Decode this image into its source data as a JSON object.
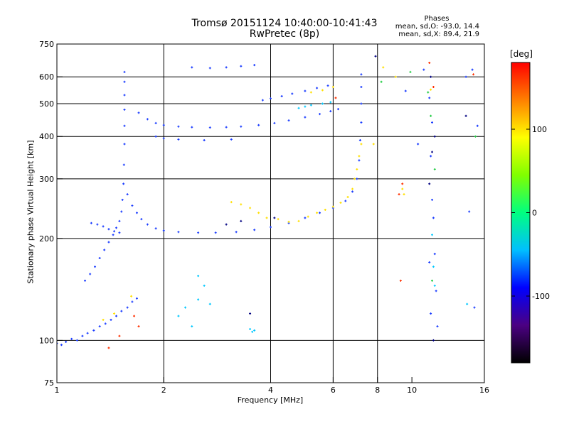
{
  "chart_data": {
    "type": "scatter",
    "title": "Tromsø 20151124 10:40:00-10:41:43",
    "subtitle": "RwPretec (8p)",
    "xlabel": "Frequency [MHz]",
    "ylabel": "Stationary phase Virtual Height [km]",
    "x_scale": "log",
    "y_scale": "log",
    "xlim": [
      1,
      16
    ],
    "ylim": [
      75,
      750
    ],
    "x_ticks": [
      1,
      2,
      4,
      6,
      8,
      10,
      16
    ],
    "x_grid": [
      2,
      4,
      6,
      8
    ],
    "y_ticks": [
      75,
      100,
      200,
      300,
      400,
      500,
      600,
      750
    ],
    "y_grid": [
      100,
      200,
      300,
      400,
      500,
      600
    ],
    "phase_stats": {
      "title": "Phases",
      "line1": "mean, sd,O: -93.0, 14.4",
      "line2": "mean, sd,X: 89.4, 21.9"
    },
    "colorbar": {
      "label": "[deg]",
      "range": [
        -180,
        180
      ],
      "ticks": [
        {
          "value": 100,
          "label": "100"
        },
        {
          "value": 0,
          "label": "0"
        },
        {
          "value": -100,
          "label": "-100"
        }
      ],
      "stops": [
        "#000000",
        "#4b0082",
        "#0000ff",
        "#00bfff",
        "#00ff80",
        "#80ff00",
        "#ffff00",
        "#ff8000",
        "#ff0000"
      ]
    },
    "series": [
      {
        "color": "#1a3cff",
        "points": [
          [
            1.0,
            98
          ],
          [
            1.03,
            97
          ],
          [
            1.06,
            99
          ],
          [
            1.1,
            101
          ],
          [
            1.14,
            100
          ],
          [
            1.18,
            103
          ],
          [
            1.22,
            105
          ],
          [
            1.27,
            107
          ],
          [
            1.32,
            110
          ],
          [
            1.37,
            112
          ],
          [
            1.42,
            115
          ],
          [
            1.47,
            118
          ],
          [
            1.52,
            122
          ],
          [
            1.58,
            125
          ],
          [
            1.63,
            130
          ],
          [
            1.68,
            133
          ],
          [
            1.2,
            150
          ],
          [
            1.24,
            157
          ],
          [
            1.28,
            165
          ],
          [
            1.32,
            175
          ],
          [
            1.36,
            185
          ],
          [
            1.4,
            195
          ],
          [
            1.44,
            205
          ],
          [
            1.47,
            215
          ],
          [
            1.5,
            225
          ],
          [
            1.52,
            240
          ],
          [
            1.53,
            260
          ],
          [
            1.54,
            290
          ],
          [
            1.545,
            330
          ],
          [
            1.55,
            380
          ],
          [
            1.55,
            430
          ],
          [
            1.55,
            480
          ],
          [
            1.55,
            530
          ],
          [
            1.55,
            580
          ],
          [
            1.55,
            620
          ],
          [
            1.58,
            270
          ],
          [
            1.63,
            250
          ],
          [
            1.68,
            238
          ],
          [
            1.73,
            228
          ],
          [
            1.8,
            220
          ],
          [
            1.9,
            214
          ],
          [
            2.0,
            211
          ],
          [
            2.2,
            209
          ],
          [
            2.5,
            208
          ],
          [
            2.8,
            208
          ],
          [
            3.2,
            209
          ],
          [
            3.6,
            212
          ],
          [
            4.0,
            216
          ],
          [
            4.5,
            222
          ],
          [
            5.0,
            230
          ],
          [
            5.5,
            238
          ],
          [
            6.0,
            246
          ],
          [
            6.5,
            258
          ],
          [
            6.8,
            275
          ],
          [
            7.0,
            300
          ],
          [
            7.1,
            340
          ],
          [
            7.15,
            390
          ],
          [
            7.2,
            440
          ],
          [
            7.2,
            500
          ],
          [
            7.2,
            560
          ],
          [
            7.2,
            610
          ],
          [
            1.25,
            222
          ],
          [
            1.3,
            220
          ],
          [
            1.35,
            217
          ],
          [
            1.4,
            213
          ],
          [
            1.45,
            210
          ],
          [
            1.5,
            208
          ],
          [
            1.7,
            470
          ],
          [
            1.8,
            450
          ],
          [
            1.9,
            438
          ],
          [
            2.0,
            432
          ],
          [
            2.2,
            428
          ],
          [
            2.4,
            426
          ],
          [
            2.7,
            425
          ],
          [
            3.0,
            426
          ],
          [
            3.3,
            428
          ],
          [
            3.7,
            432
          ],
          [
            4.1,
            438
          ],
          [
            4.5,
            446
          ],
          [
            5.0,
            456
          ],
          [
            5.5,
            466
          ],
          [
            5.9,
            475
          ],
          [
            6.2,
            482
          ],
          [
            3.8,
            512
          ],
          [
            4.0,
            518
          ],
          [
            4.3,
            526
          ],
          [
            4.6,
            535
          ],
          [
            5.0,
            545
          ],
          [
            5.4,
            556
          ],
          [
            5.8,
            565
          ],
          [
            2.4,
            640
          ],
          [
            2.7,
            637
          ],
          [
            3.0,
            640
          ],
          [
            3.3,
            645
          ],
          [
            3.6,
            650
          ],
          [
            1.9,
            400
          ],
          [
            2.0,
            395
          ],
          [
            2.2,
            392
          ],
          [
            2.6,
            390
          ],
          [
            3.1,
            392
          ],
          [
            9.6,
            545
          ],
          [
            10.4,
            380
          ],
          [
            10.8,
            630
          ],
          [
            11.2,
            520
          ],
          [
            11.3,
            350
          ],
          [
            11.4,
            260
          ],
          [
            11.5,
            230
          ],
          [
            11.6,
            180
          ],
          [
            11.7,
            140
          ],
          [
            11.8,
            110
          ],
          [
            11.2,
            170
          ],
          [
            11.3,
            120
          ],
          [
            11.4,
            440
          ],
          [
            14.5,
            240
          ],
          [
            14.8,
            630
          ],
          [
            15.0,
            125
          ],
          [
            14.2,
            600
          ],
          [
            15.3,
            430
          ]
        ]
      },
      {
        "color": "#ffe000",
        "points": [
          [
            3.1,
            256
          ],
          [
            3.3,
            252
          ],
          [
            3.5,
            246
          ],
          [
            3.7,
            238
          ],
          [
            3.9,
            230
          ],
          [
            4.2,
            228
          ],
          [
            4.5,
            224
          ],
          [
            4.8,
            225
          ],
          [
            5.1,
            232
          ],
          [
            5.4,
            238
          ],
          [
            5.7,
            243
          ],
          [
            6.0,
            248
          ],
          [
            6.3,
            255
          ],
          [
            6.6,
            265
          ],
          [
            6.8,
            280
          ],
          [
            6.9,
            300
          ],
          [
            7.0,
            320
          ],
          [
            7.1,
            350
          ],
          [
            7.2,
            380
          ],
          [
            6.0,
            560
          ],
          [
            5.6,
            548
          ],
          [
            5.2,
            540
          ],
          [
            1.45,
            120
          ],
          [
            1.35,
            115
          ],
          [
            1.62,
            135
          ],
          [
            7.8,
            380
          ],
          [
            8.3,
            640
          ],
          [
            9.0,
            600
          ],
          [
            11.3,
            550
          ],
          [
            9.5,
            270
          ],
          [
            9.4,
            280
          ]
        ]
      },
      {
        "color": "#00c8ff",
        "points": [
          [
            2.2,
            118
          ],
          [
            2.3,
            125
          ],
          [
            2.5,
            132
          ],
          [
            2.7,
            128
          ],
          [
            2.5,
            155
          ],
          [
            2.6,
            145
          ],
          [
            2.4,
            110
          ],
          [
            3.5,
            108
          ],
          [
            3.55,
            106
          ],
          [
            3.6,
            107
          ],
          [
            5.0,
            490
          ],
          [
            5.2,
            495
          ],
          [
            5.6,
            500
          ],
          [
            4.8,
            485
          ],
          [
            5.9,
            505
          ],
          [
            11.5,
            165
          ],
          [
            11.6,
            145
          ],
          [
            14.3,
            128
          ],
          [
            11.4,
            205
          ]
        ]
      },
      {
        "color": "#ff3000",
        "points": [
          [
            1.4,
            95
          ],
          [
            1.5,
            103
          ],
          [
            1.7,
            110
          ],
          [
            1.65,
            118
          ],
          [
            6.1,
            520
          ],
          [
            11.2,
            660
          ],
          [
            11.5,
            560
          ],
          [
            9.2,
            270
          ],
          [
            9.4,
            290
          ],
          [
            14.9,
            610
          ],
          [
            9.3,
            150
          ]
        ]
      },
      {
        "color": "#22cc44",
        "points": [
          [
            11.1,
            540
          ],
          [
            11.3,
            460
          ],
          [
            11.6,
            320
          ],
          [
            8.2,
            580
          ],
          [
            9.9,
            620
          ],
          [
            11.4,
            150
          ],
          [
            15.1,
            400
          ]
        ]
      },
      {
        "color": "#000080",
        "points": [
          [
            11.3,
            600
          ],
          [
            11.6,
            400
          ],
          [
            11.2,
            290
          ],
          [
            11.4,
            360
          ],
          [
            11.5,
            100
          ],
          [
            4.1,
            230
          ],
          [
            3.3,
            225
          ],
          [
            3.0,
            220
          ],
          [
            3.5,
            120
          ],
          [
            14.2,
            460
          ],
          [
            7.9,
            690
          ]
        ]
      }
    ]
  }
}
